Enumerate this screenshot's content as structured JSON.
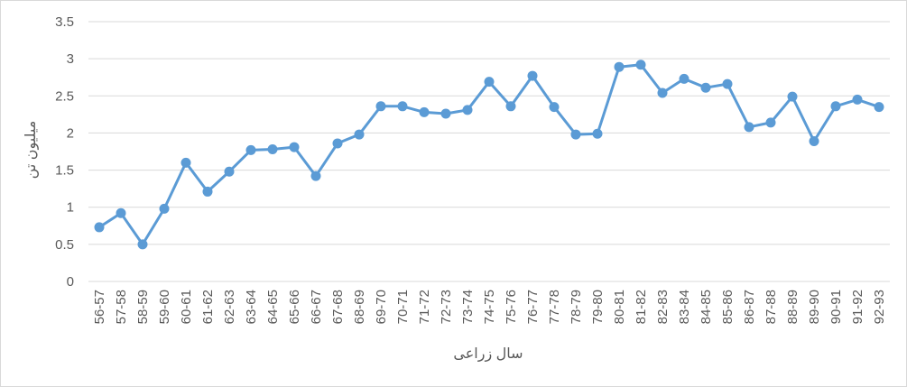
{
  "chart_data": {
    "type": "line",
    "title": "",
    "xlabel": "سال زراعی",
    "ylabel": "میلیون تن",
    "ylim": [
      0,
      3.5
    ],
    "yticks": [
      "0",
      "0.5",
      "1",
      "1.5",
      "2",
      "2.5",
      "3",
      "3.5"
    ],
    "grid": true,
    "legend": "none",
    "color": "#5b9bd5",
    "categories": [
      "56-57",
      "57-58",
      "58-59",
      "59-60",
      "60-61",
      "61-62",
      "62-63",
      "63-64",
      "64-65",
      "65-66",
      "66-67",
      "67-68",
      "68-69",
      "69-70",
      "70-71",
      "71-72",
      "72-73",
      "73-74",
      "74-75",
      "75-76",
      "76-77",
      "77-78",
      "78-79",
      "79-80",
      "80-81",
      "81-82",
      "82-83",
      "83-84",
      "84-85",
      "85-86",
      "86-87",
      "87-88",
      "88-89",
      "89-90",
      "90-91",
      "91-92",
      "92-93"
    ],
    "values": [
      0.73,
      0.92,
      0.5,
      0.98,
      1.6,
      1.21,
      1.48,
      1.77,
      1.78,
      1.81,
      1.42,
      1.86,
      1.98,
      2.36,
      2.36,
      2.28,
      2.26,
      2.31,
      2.69,
      2.36,
      2.77,
      2.35,
      1.98,
      1.99,
      2.89,
      2.92,
      2.54,
      2.73,
      2.61,
      2.66,
      2.08,
      2.14,
      2.49,
      1.89,
      2.36,
      2.45,
      2.35
    ]
  }
}
